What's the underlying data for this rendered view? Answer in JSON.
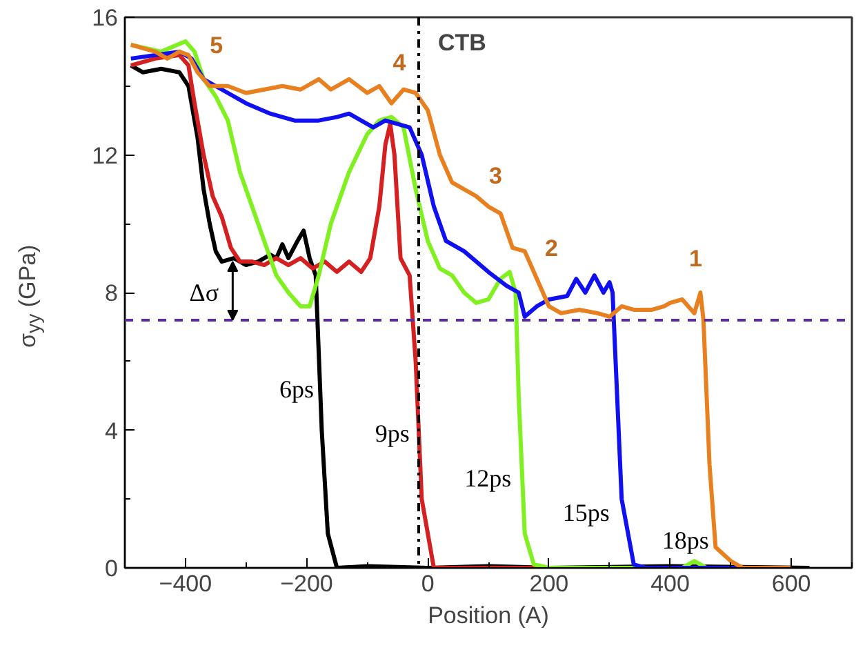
{
  "chart_data": {
    "type": "line",
    "xlabel": "Position (A)",
    "ylabel": "σ$_{yy}$ (GPa)",
    "xlim": [
      -500,
      700
    ],
    "ylim": [
      0,
      16
    ],
    "xticks": [
      {
        "value": -500,
        "label": null
      },
      -400,
      {
        "value": -300,
        "label": null
      },
      -200,
      {
        "value": -100,
        "label": null
      },
      0,
      {
        "value": 100,
        "label": null
      },
      200,
      {
        "value": 300,
        "label": null
      },
      400,
      {
        "value": 500,
        "label": null
      },
      600,
      {
        "value": 700,
        "label": null
      }
    ],
    "yticks": [
      0,
      {
        "value": 2,
        "label": null
      },
      4,
      {
        "value": 6,
        "label": null
      },
      8,
      {
        "value": 10,
        "label": null
      },
      12,
      {
        "value": 14,
        "label": null
      },
      16
    ],
    "grid": false,
    "line_style": "solid",
    "marker": "none",
    "series": [
      {
        "color": "#000000",
        "x": [
          -490,
          -470,
          -440,
          -410,
          -395,
          -380,
          -370,
          -360,
          -350,
          -340,
          -320,
          -300,
          -280,
          -260,
          -250,
          -240,
          -230,
          -215,
          -205,
          -195,
          -185,
          -175,
          -165,
          -150,
          -100,
          0,
          100,
          200,
          400,
          630
        ],
        "values": [
          14.6,
          14.4,
          14.5,
          14.4,
          14.0,
          12.5,
          11.0,
          10.0,
          9.2,
          8.9,
          9.0,
          8.8,
          8.9,
          9.1,
          9.0,
          9.4,
          9.0,
          9.5,
          9.8,
          9.0,
          8.5,
          4.0,
          1.0,
          0.0,
          0.05,
          0.0,
          0.05,
          0.0,
          0.05,
          0.0
        ]
      },
      {
        "color": "#d42020",
        "x": [
          -490,
          -450,
          -410,
          -395,
          -385,
          -370,
          -355,
          -340,
          -325,
          -310,
          -290,
          -270,
          -250,
          -230,
          -210,
          -190,
          -170,
          -150,
          -130,
          -110,
          -95,
          -80,
          -70,
          -62,
          -55,
          -45,
          -30,
          -20,
          -10,
          10,
          600
        ],
        "values": [
          14.6,
          14.8,
          14.9,
          14.6,
          13.5,
          12.0,
          10.8,
          10.2,
          9.3,
          8.9,
          8.9,
          8.8,
          9.0,
          8.8,
          9.0,
          8.7,
          8.9,
          8.6,
          8.9,
          8.6,
          9.0,
          10.5,
          12.3,
          12.9,
          12.0,
          9.0,
          8.5,
          6.0,
          2.0,
          0.0,
          0.0
        ]
      },
      {
        "color": "#80f020",
        "x": [
          -490,
          -440,
          -400,
          -385,
          -370,
          -350,
          -330,
          -310,
          -290,
          -270,
          -250,
          -230,
          -210,
          -195,
          -180,
          -160,
          -130,
          -100,
          -80,
          -60,
          -40,
          -20,
          0,
          20,
          40,
          60,
          80,
          100,
          120,
          135,
          145,
          150,
          160,
          175,
          200,
          420,
          440,
          460,
          600
        ],
        "values": [
          15.2,
          15.0,
          15.3,
          15.0,
          14.2,
          13.7,
          13.0,
          11.5,
          10.5,
          9.5,
          8.5,
          8.0,
          7.6,
          7.6,
          8.5,
          10.0,
          11.5,
          12.6,
          13.0,
          13.1,
          12.8,
          11.0,
          9.5,
          8.7,
          8.5,
          8.0,
          7.7,
          7.8,
          8.4,
          8.6,
          8.0,
          5.0,
          1.0,
          0.1,
          0.0,
          0.0,
          0.2,
          0.0,
          0.0
        ]
      },
      {
        "color": "#1010f0",
        "x": [
          -490,
          -450,
          -410,
          -390,
          -370,
          -340,
          -300,
          -260,
          -220,
          -180,
          -150,
          -130,
          -110,
          -90,
          -70,
          -50,
          -30,
          -10,
          10,
          30,
          60,
          100,
          130,
          150,
          160,
          180,
          200,
          230,
          245,
          260,
          275,
          290,
          300,
          305,
          310,
          320,
          340,
          360,
          600
        ],
        "values": [
          14.8,
          14.9,
          15.0,
          14.8,
          14.2,
          13.9,
          13.5,
          13.2,
          13.0,
          13.0,
          13.1,
          13.2,
          13.0,
          12.8,
          13.0,
          12.9,
          12.8,
          12.0,
          10.5,
          9.5,
          9.2,
          8.6,
          8.2,
          8.0,
          7.3,
          7.6,
          7.8,
          7.9,
          8.4,
          8.0,
          8.5,
          8.0,
          8.3,
          8.0,
          6.0,
          2.0,
          0.1,
          0.0,
          0.0
        ]
      },
      {
        "color": "#e88020",
        "x": [
          -490,
          -470,
          -450,
          -430,
          -410,
          -395,
          -380,
          -360,
          -330,
          -300,
          -270,
          -240,
          -210,
          -180,
          -160,
          -130,
          -100,
          -80,
          -60,
          -40,
          -20,
          0,
          20,
          40,
          60,
          80,
          100,
          120,
          140,
          160,
          180,
          200,
          220,
          250,
          280,
          300,
          320,
          340,
          370,
          390,
          400,
          420,
          440,
          450,
          455,
          465,
          475,
          500,
          520,
          600
        ],
        "values": [
          15.2,
          15.1,
          15.0,
          14.8,
          15.0,
          14.9,
          14.4,
          14.0,
          14.0,
          13.8,
          13.9,
          14.0,
          13.9,
          14.2,
          13.9,
          14.2,
          13.8,
          14.0,
          13.5,
          13.9,
          13.8,
          13.3,
          12.0,
          11.2,
          11.0,
          10.8,
          10.5,
          10.3,
          9.3,
          9.2,
          8.4,
          7.6,
          7.4,
          7.5,
          7.4,
          7.3,
          7.6,
          7.5,
          7.5,
          7.6,
          7.7,
          7.8,
          7.4,
          8.0,
          7.2,
          3.0,
          0.6,
          0.2,
          0.0,
          0.0
        ]
      }
    ],
    "ref_lines": [
      {
        "axis": "y",
        "value": 7.2,
        "color": "#5b2c9e",
        "line_style": "dashed"
      },
      {
        "axis": "x",
        "value": -15,
        "label": "CTB",
        "color": "#000000",
        "line_style": "dashdot"
      }
    ],
    "annotations": [
      "5",
      "4",
      "3",
      "2",
      "1",
      "6ps",
      "9ps",
      "12ps",
      "15ps",
      "18ps",
      "Δσ"
    ]
  }
}
